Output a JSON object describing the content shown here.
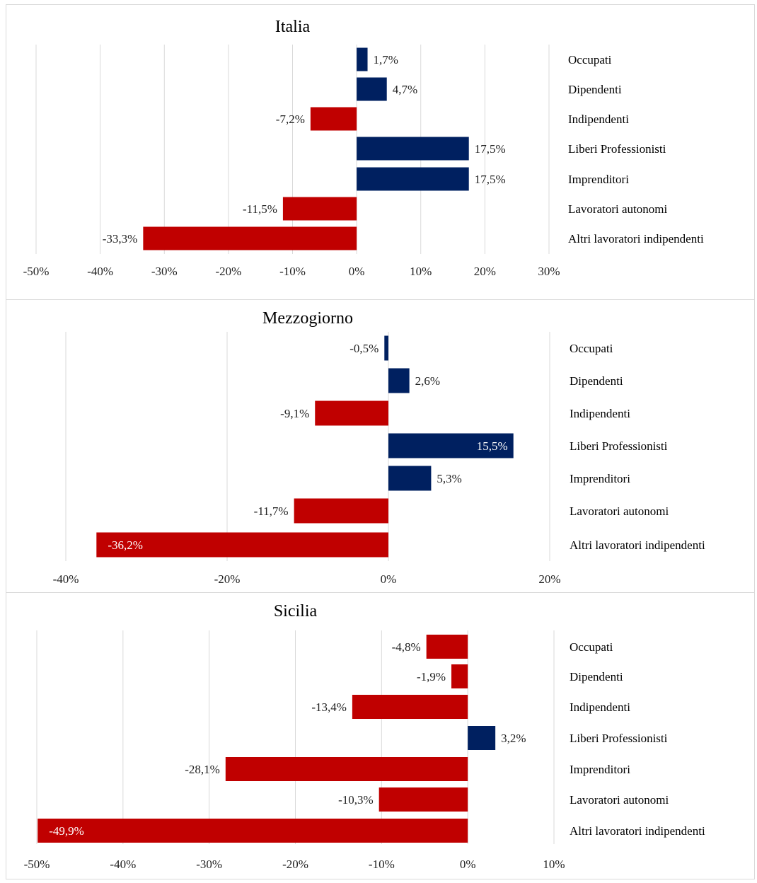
{
  "chart_data": [
    {
      "type": "bar",
      "orientation": "horizontal",
      "title": "Italia",
      "categories": [
        "Occupati",
        "Dipendenti",
        "Indipendenti",
        "Liberi Professionisti",
        "Imprenditori",
        "Lavoratori autonomi",
        "Altri lavoratori indipendenti"
      ],
      "values": [
        1.7,
        4.7,
        -7.2,
        17.5,
        17.5,
        -11.5,
        -33.3
      ],
      "value_labels": [
        "1,7%",
        "4,7%",
        "-7,2%",
        "17,5%",
        "17,5%",
        "-11,5%",
        "-33,3%"
      ],
      "xlim": [
        -50,
        30
      ],
      "xticks": [
        -50,
        -40,
        -30,
        -20,
        -10,
        0,
        10,
        20,
        30
      ],
      "xtick_labels": [
        "-50%",
        "-40%",
        "-30%",
        "-20%",
        "-10%",
        "0%",
        "10%",
        "20%",
        "30%"
      ],
      "gridlines": [
        -50,
        -40,
        -30,
        -20,
        -10,
        0,
        10,
        20,
        30
      ],
      "bar_colors": [
        "#002060",
        "#002060",
        "#c00000",
        "#002060",
        "#002060",
        "#c00000",
        "#c00000"
      ],
      "label_inside": [
        false,
        false,
        false,
        false,
        false,
        false,
        false
      ],
      "grid": true,
      "legend": "none"
    },
    {
      "type": "bar",
      "orientation": "horizontal",
      "title": "Mezzogiorno",
      "categories": [
        "Occupati",
        "Dipendenti",
        "Indipendenti",
        "Liberi Professionisti",
        "Imprenditori",
        "Lavoratori autonomi",
        "Altri lavoratori indipendenti"
      ],
      "values": [
        -0.5,
        2.6,
        -9.1,
        15.5,
        5.3,
        -11.7,
        -36.2
      ],
      "value_labels": [
        "-0,5%",
        "2,6%",
        "-9,1%",
        "15,5%",
        "5,3%",
        "-11,7%",
        "-36,2%"
      ],
      "xlim": [
        -40,
        20
      ],
      "xticks": [
        -40,
        -20,
        0,
        20
      ],
      "xtick_labels": [
        "-40%",
        "-20%",
        "0%",
        "20%"
      ],
      "gridlines": [
        -40,
        -20,
        0,
        20
      ],
      "bar_colors": [
        "#002060",
        "#002060",
        "#c00000",
        "#002060",
        "#002060",
        "#c00000",
        "#c00000"
      ],
      "label_inside": [
        false,
        false,
        false,
        true,
        false,
        false,
        true
      ],
      "grid": true,
      "legend": "none"
    },
    {
      "type": "bar",
      "orientation": "horizontal",
      "title": "Sicilia",
      "categories": [
        "Occupati",
        "Dipendenti",
        "Indipendenti",
        "Liberi Professionisti",
        "Imprenditori",
        "Lavoratori autonomi",
        "Altri lavoratori indipendenti"
      ],
      "values": [
        -4.8,
        -1.9,
        -13.4,
        3.2,
        -28.1,
        -10.3,
        -49.9
      ],
      "value_labels": [
        "-4,8%",
        "-1,9%",
        "-13,4%",
        "3,2%",
        "-28,1%",
        "-10,3%",
        "-49,9%"
      ],
      "xlim": [
        -50,
        10
      ],
      "xticks": [
        -50,
        -40,
        -30,
        -20,
        -10,
        0,
        10
      ],
      "xtick_labels": [
        "-50%",
        "-40%",
        "-30%",
        "-20%",
        "-10%",
        "0%",
        "10%"
      ],
      "gridlines": [
        -50,
        -40,
        -30,
        -20,
        -10,
        0,
        10
      ],
      "bar_colors": [
        "#c00000",
        "#c00000",
        "#c00000",
        "#002060",
        "#c00000",
        "#c00000",
        "#c00000"
      ],
      "label_inside": [
        false,
        false,
        false,
        false,
        false,
        false,
        true
      ],
      "grid": true,
      "legend": "none"
    }
  ]
}
